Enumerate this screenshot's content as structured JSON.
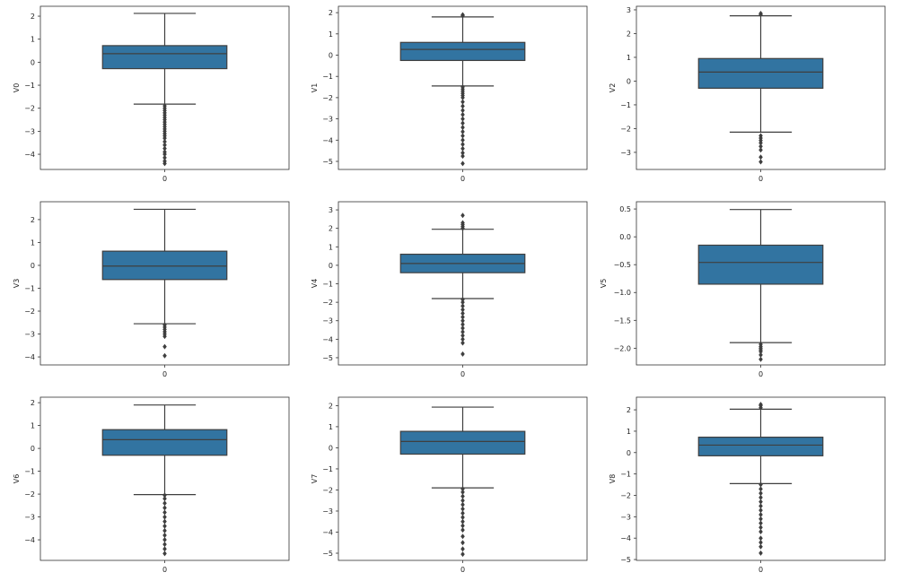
{
  "chart_data": {
    "type": "box",
    "colors": {
      "box": "#3274a1",
      "line": "#3f3f3f",
      "axis": "#333333"
    },
    "panels": [
      {
        "ylabel": "V0",
        "xtick": "0",
        "ylim": [
          -4.66,
          2.43
        ],
        "yticks": [
          -4,
          -3,
          -2,
          -1,
          0,
          1,
          2
        ],
        "whisker_high": 2.12,
        "q3": 0.72,
        "median": 0.37,
        "q1": -0.28,
        "whisker_low": -1.82,
        "outliers": [
          -1.9,
          -2.0,
          -2.1,
          -2.2,
          -2.3,
          -2.4,
          -2.5,
          -2.6,
          -2.7,
          -2.8,
          -2.9,
          -3.0,
          -3.1,
          -3.2,
          -3.3,
          -3.45,
          -3.6,
          -3.75,
          -3.9,
          -4.0,
          -4.15,
          -4.3,
          -4.4
        ]
      },
      {
        "ylabel": "V1",
        "xtick": "0",
        "ylim": [
          -5.38,
          2.3
        ],
        "yticks": [
          -5,
          -4,
          -3,
          -2,
          -1,
          0,
          1,
          2
        ],
        "whisker_high": 1.8,
        "q3": 0.6,
        "median": 0.27,
        "q1": -0.25,
        "whisker_low": -1.45,
        "outliers": [
          1.85,
          1.9,
          -1.5,
          -1.6,
          -1.7,
          -1.8,
          -1.9,
          -2.0,
          -2.2,
          -2.4,
          -2.6,
          -2.8,
          -3.0,
          -3.2,
          -3.4,
          -3.6,
          -3.8,
          -4.0,
          -4.2,
          -4.4,
          -4.6,
          -4.75,
          -5.1
        ]
      },
      {
        "ylabel": "V2",
        "xtick": "0",
        "ylim": [
          -3.72,
          3.15
        ],
        "yticks": [
          -3,
          -2,
          -1,
          0,
          1,
          2,
          3
        ],
        "whisker_high": 2.75,
        "q3": 0.95,
        "median": 0.38,
        "q1": -0.3,
        "whisker_low": -2.15,
        "outliers": [
          2.8,
          2.85,
          -2.3,
          -2.4,
          -2.5,
          -2.6,
          -2.75,
          -2.9,
          -3.2,
          -3.4
        ]
      },
      {
        "ylabel": "V3",
        "xtick": "0",
        "ylim": [
          -4.35,
          2.78
        ],
        "yticks": [
          -4,
          -3,
          -2,
          -1,
          0,
          1,
          2
        ],
        "whisker_high": 2.45,
        "q3": 0.62,
        "median": -0.03,
        "q1": -0.62,
        "whisker_low": -2.55,
        "outliers": [
          -2.6,
          -2.7,
          -2.8,
          -2.9,
          -3.0,
          -3.1,
          -3.55,
          -3.95
        ]
      },
      {
        "ylabel": "V4",
        "xtick": "0",
        "ylim": [
          -5.39,
          3.44
        ],
        "yticks": [
          -5,
          -4,
          -3,
          -2,
          -1,
          0,
          1,
          2,
          3
        ],
        "whisker_high": 1.95,
        "q3": 0.6,
        "median": 0.1,
        "q1": -0.4,
        "whisker_low": -1.8,
        "outliers": [
          2.0,
          2.1,
          2.2,
          2.3,
          2.7,
          -1.85,
          -2.0,
          -2.2,
          -2.4,
          -2.6,
          -2.8,
          -3.0,
          -3.2,
          -3.4,
          -3.6,
          -3.8,
          -4.0,
          -4.2,
          -4.8
        ]
      },
      {
        "ylabel": "V5",
        "xtick": "0",
        "ylim": [
          -2.3,
          0.63
        ],
        "yticks": [
          -2.0,
          -1.5,
          -1.0,
          -0.5,
          0.0,
          0.5
        ],
        "whisker_high": 0.49,
        "q3": -0.15,
        "median": -0.46,
        "q1": -0.85,
        "whisker_low": -1.9,
        "outliers": [
          -1.93,
          -1.97,
          -2.0,
          -2.03,
          -2.06,
          -2.12,
          -2.2
        ]
      },
      {
        "ylabel": "V6",
        "xtick": "0",
        "ylim": [
          -4.9,
          2.24
        ],
        "yticks": [
          -4,
          -3,
          -2,
          -1,
          0,
          1,
          2
        ],
        "whisker_high": 1.9,
        "q3": 0.82,
        "median": 0.38,
        "q1": -0.3,
        "whisker_low": -2.02,
        "outliers": [
          -2.05,
          -2.2,
          -2.4,
          -2.6,
          -2.8,
          -3.0,
          -3.2,
          -3.4,
          -3.6,
          -3.8,
          -4.0,
          -4.2,
          -4.4,
          -4.6
        ]
      },
      {
        "ylabel": "V7",
        "xtick": "0",
        "ylim": [
          -5.34,
          2.4
        ],
        "yticks": [
          -5,
          -4,
          -3,
          -2,
          -1,
          0,
          1,
          2
        ],
        "whisker_high": 1.93,
        "q3": 0.78,
        "median": 0.3,
        "q1": -0.3,
        "whisker_low": -1.9,
        "outliers": [
          -1.95,
          -2.1,
          -2.3,
          -2.5,
          -2.7,
          -2.9,
          -3.1,
          -3.3,
          -3.5,
          -3.7,
          -3.9,
          -4.2,
          -4.5,
          -4.8,
          -5.05
        ]
      },
      {
        "ylabel": "V8",
        "xtick": "0",
        "ylim": [
          -5.04,
          2.59
        ],
        "yticks": [
          -5,
          -4,
          -3,
          -2,
          -1,
          0,
          1,
          2
        ],
        "whisker_high": 2.03,
        "q3": 0.72,
        "median": 0.35,
        "q1": -0.15,
        "whisker_low": -1.45,
        "outliers": [
          2.1,
          2.2,
          2.25,
          -1.5,
          -1.7,
          -1.9,
          -2.1,
          -2.3,
          -2.5,
          -2.7,
          -2.9,
          -3.1,
          -3.3,
          -3.5,
          -3.7,
          -4.0,
          -4.2,
          -4.4,
          -4.7
        ]
      }
    ]
  }
}
